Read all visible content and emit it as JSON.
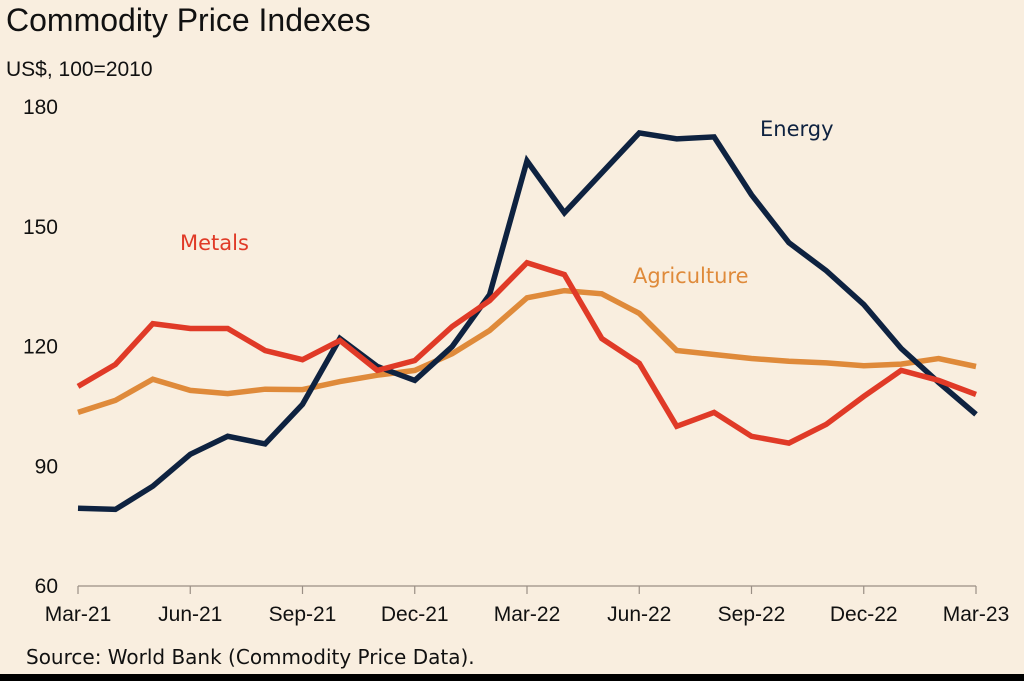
{
  "chart_data": {
    "type": "line",
    "title": "Commodity Price Indexes",
    "subtitle": "US$, 100=2010",
    "source": "Source: World Bank (Commodity Price Data).",
    "xlabel": "",
    "ylabel": "",
    "ylim": [
      60,
      180
    ],
    "yticks": [
      60,
      90,
      120,
      150,
      180
    ],
    "categories": [
      "Mar-21",
      "Apr-21",
      "May-21",
      "Jun-21",
      "Jul-21",
      "Aug-21",
      "Sep-21",
      "Oct-21",
      "Nov-21",
      "Dec-21",
      "Jan-22",
      "Feb-22",
      "Mar-22",
      "Apr-22",
      "May-22",
      "Jun-22",
      "Jul-22",
      "Aug-22",
      "Sep-22",
      "Oct-22",
      "Nov-22",
      "Dec-22",
      "Jan-23",
      "Feb-23",
      "Mar-23"
    ],
    "xtick_labels": [
      "Mar-21",
      "Jun-21",
      "Sep-21",
      "Dec-21",
      "Mar-22",
      "Jun-22",
      "Sep-22",
      "Dec-22",
      "Mar-23"
    ],
    "grid": false,
    "series": [
      {
        "name": "Energy",
        "color": "#0e2240",
        "values": [
          79.5,
          79.2,
          85,
          93,
          97.5,
          95.6,
          105.5,
          122,
          115,
          111.5,
          120,
          133,
          166.5,
          153.5,
          163.5,
          173.5,
          172,
          172.5,
          158,
          146,
          139,
          130.5,
          119.5,
          111,
          103
        ]
      },
      {
        "name": "Metals",
        "color": "#e03a27",
        "values": [
          110,
          115.5,
          125.7,
          124.5,
          124.5,
          119,
          116.7,
          121.5,
          114,
          116.5,
          125,
          131.5,
          141,
          138,
          122,
          115.8,
          100,
          103.5,
          97.5,
          95.8,
          100.5,
          107.5,
          114,
          111.5,
          108
        ]
      },
      {
        "name": "Agriculture",
        "color": "#df8a3a",
        "values": [
          103.5,
          106.5,
          111.8,
          109,
          108.2,
          109.3,
          109.2,
          111.2,
          112.8,
          114,
          118.2,
          124,
          132.2,
          134,
          133.2,
          128.3,
          119,
          118,
          117,
          116.3,
          115.9,
          115.2,
          115.6,
          117,
          115
        ]
      }
    ],
    "label_positions": [
      "top-right",
      "left",
      "center-right"
    ]
  }
}
